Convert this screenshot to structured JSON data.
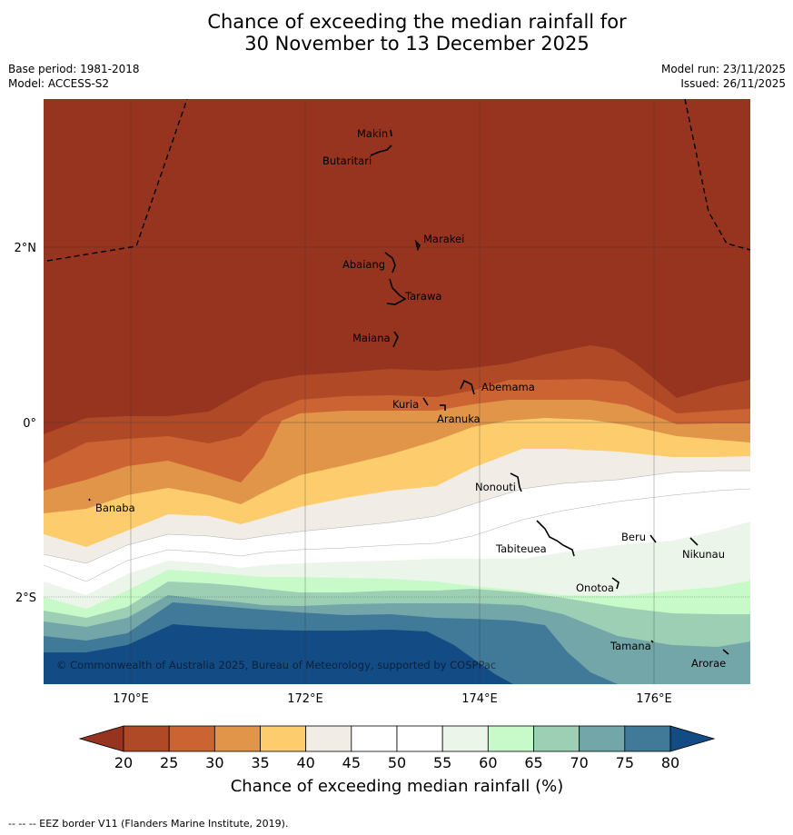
{
  "title": {
    "line1": "Chance of exceeding the median rainfall for",
    "line2": "30 November to 13 December 2025"
  },
  "meta": {
    "base_period": "Base period: 1981-2018",
    "model": "Model: ACCESS-S2",
    "model_run": "Model run: 23/11/2025",
    "issued": "Issued: 26/11/2025"
  },
  "map": {
    "lat_labels": [
      "2°N",
      "0°",
      "2°S"
    ],
    "lon_labels": [
      "170°E",
      "172°E",
      "174°E",
      "176°E"
    ],
    "places": [
      {
        "name": "Makin"
      },
      {
        "name": "Butaritari"
      },
      {
        "name": "Marakei"
      },
      {
        "name": "Abaiang"
      },
      {
        "name": "Tarawa"
      },
      {
        "name": "Maiana"
      },
      {
        "name": "Abemama"
      },
      {
        "name": "Kuria"
      },
      {
        "name": "Aranuka"
      },
      {
        "name": "Nonouti"
      },
      {
        "name": "Banaba"
      },
      {
        "name": "Tabiteuea"
      },
      {
        "name": "Beru"
      },
      {
        "name": "Nikunau"
      },
      {
        "name": "Onotoa"
      },
      {
        "name": "Tamana"
      },
      {
        "name": "Arorae"
      }
    ],
    "copyright": "© Commonwealth of Australia 2025, Bureau of Meteorology, supported by COSPPac"
  },
  "colorbar": {
    "ticks": [
      "20",
      "25",
      "30",
      "35",
      "40",
      "45",
      "50",
      "55",
      "60",
      "65",
      "70",
      "75",
      "80"
    ],
    "label": "Chance of exceeding median rainfall (%)",
    "colors": {
      "below20": "#97341f",
      "20-25": "#b04a26",
      "25-30": "#cc6333",
      "30-35": "#e09548",
      "35-40": "#fdcd6d",
      "40-45": "#f1ece6",
      "45-50": "#ffffff",
      "50-55": "#ffffff",
      "55-60": "#ebf5ea",
      "60-65": "#c8fac9",
      "65-70": "#9dcfb5",
      "70-75": "#72a6a9",
      "75-80": "#417a99",
      "above80": "#134b84"
    }
  },
  "footnote": "-- -- -- EEZ border V11 (Flanders Marine Institute, 2019)."
}
